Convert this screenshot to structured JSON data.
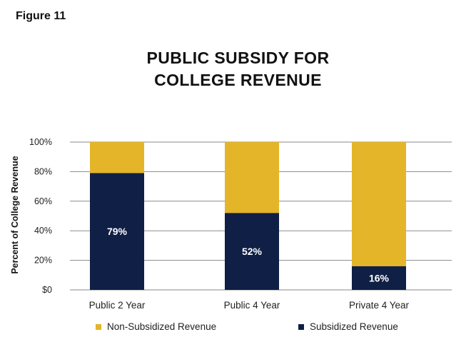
{
  "figure_label": "Figure 11",
  "chart_data": {
    "type": "bar",
    "stacked": true,
    "percent_stacked": true,
    "title_lines": [
      "PUBLIC SUBSIDY FOR",
      "COLLEGE REVENUE"
    ],
    "ylabel": "Percent of College Revenue",
    "xlabel": "",
    "ylim": [
      0,
      100
    ],
    "yticks": [
      0,
      20,
      40,
      60,
      80,
      100
    ],
    "ytick_labels": [
      "$0",
      "20%",
      "40%",
      "60%",
      "80%",
      "100%"
    ],
    "categories": [
      "Public 2 Year",
      "Public 4 Year",
      "Private 4 Year"
    ],
    "series": [
      {
        "name": "Subsidized Revenue",
        "color": "#0f1f45",
        "values": [
          79,
          52,
          16
        ],
        "data_labels": [
          "79%",
          "52%",
          "16%"
        ]
      },
      {
        "name": "Non-Subsidized Revenue",
        "color": "#e4b528",
        "values": [
          21,
          48,
          84
        ]
      }
    ],
    "legend": {
      "position": "bottom",
      "order": [
        "Non-Subsidized Revenue",
        "Subsidized Revenue"
      ]
    },
    "grid": true
  }
}
